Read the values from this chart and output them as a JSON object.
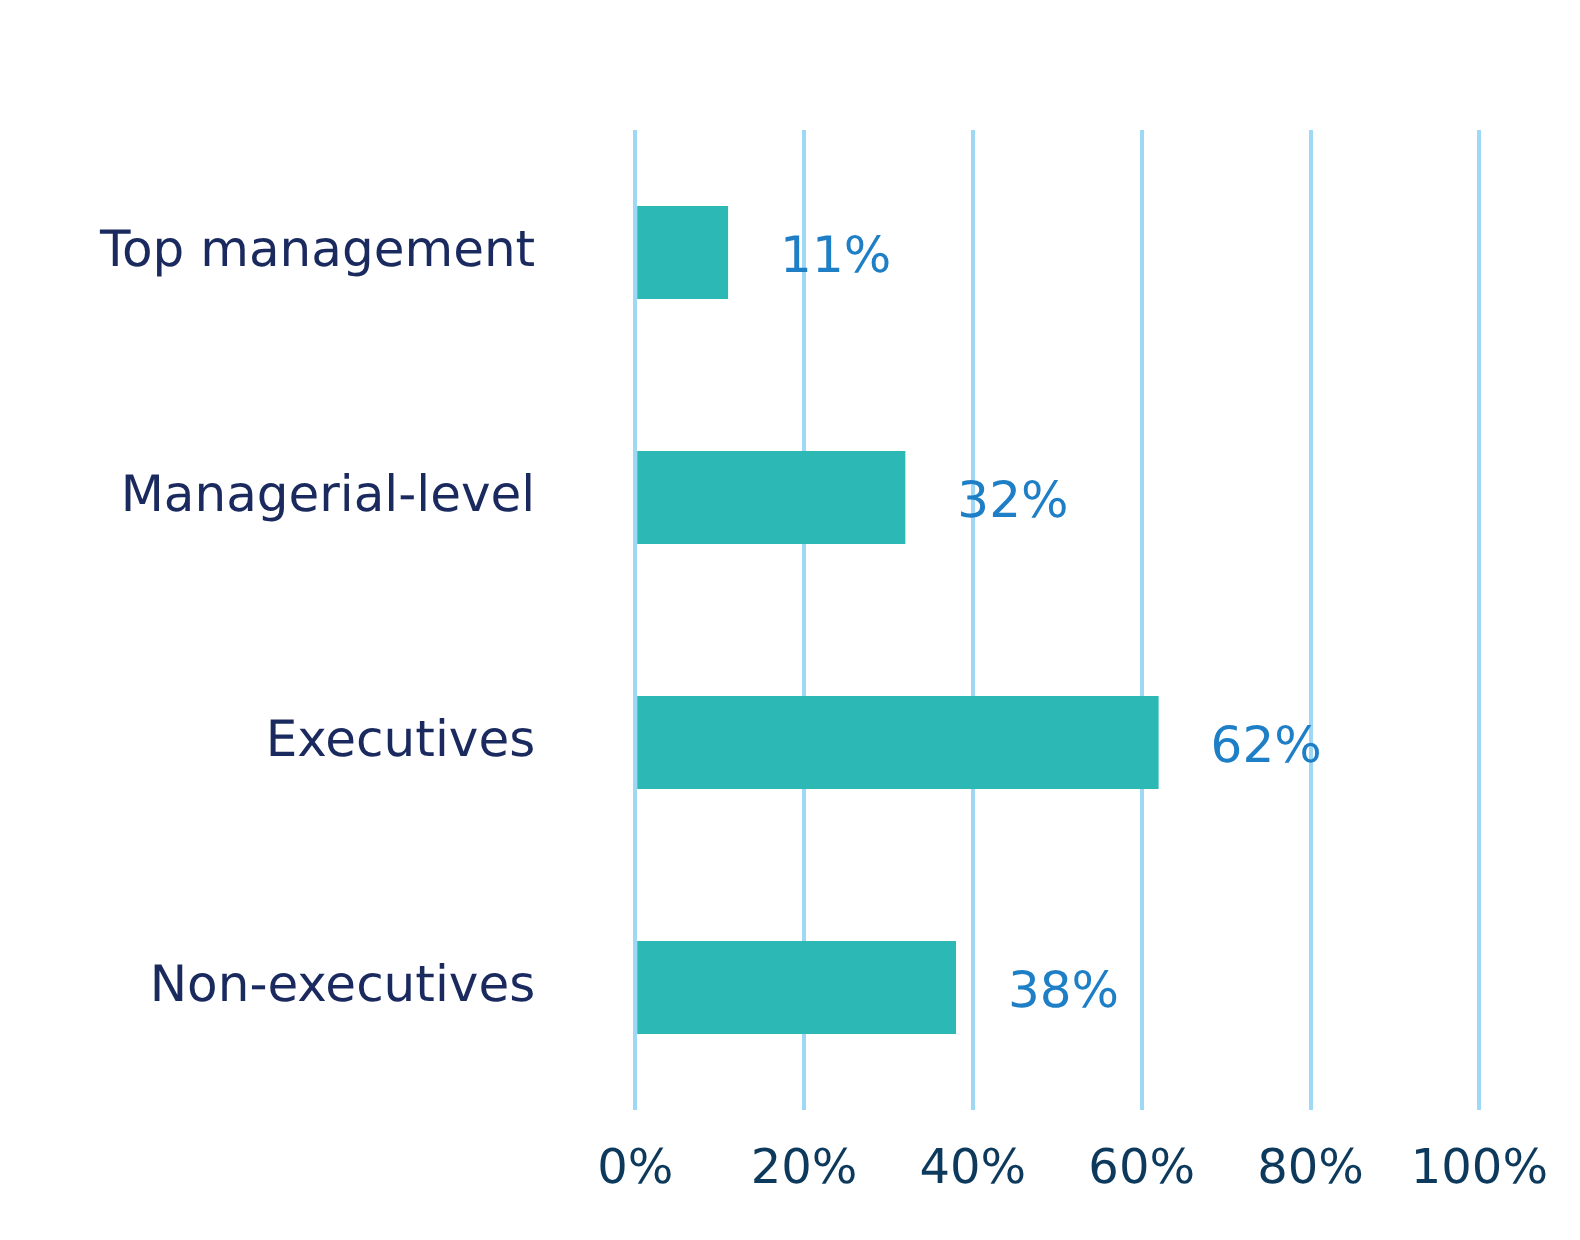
{
  "chart_data": {
    "type": "bar",
    "orientation": "horizontal",
    "categories": [
      "Top management",
      "Managerial-level",
      "Executives",
      "Non-executives"
    ],
    "values": [
      11,
      32,
      62,
      38
    ],
    "color": "#2cb8b4",
    "value_labels": [
      "11%",
      "32%",
      "62%",
      "38%"
    ],
    "xlim": [
      0,
      100
    ],
    "xticks": [
      {
        "value": 0,
        "label": "0%"
      },
      {
        "value": 20,
        "label": "20%"
      },
      {
        "value": 40,
        "label": "40%"
      },
      {
        "value": 60,
        "label": "60%"
      },
      {
        "value": 80,
        "label": "80%"
      },
      {
        "value": 100,
        "label": "100%"
      }
    ],
    "grid": "x",
    "legend": false
  }
}
